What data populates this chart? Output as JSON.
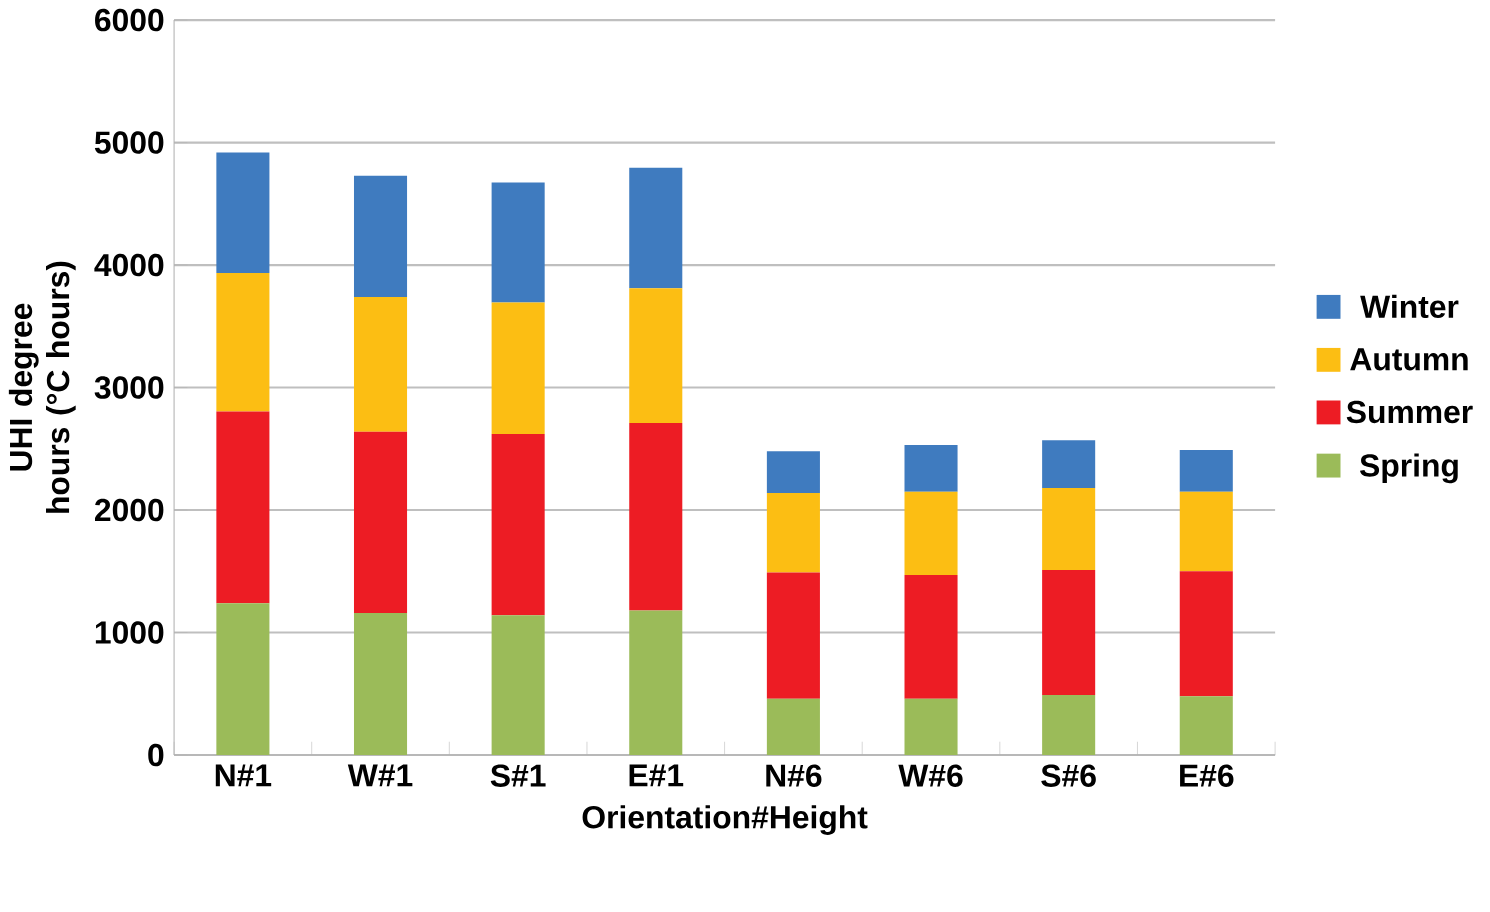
{
  "chart_data": {
    "type": "bar",
    "stacked": true,
    "xlabel": "Orientation#Height",
    "ylabel": "UHI degree hours (°C hours)",
    "categories": [
      "N#1",
      "W#1",
      "S#1",
      "E#1",
      "N#6",
      "W#6",
      "S#6",
      "E#6"
    ],
    "series": [
      {
        "name": "Spring",
        "color": "#9bbb59",
        "values": [
          1240,
          1160,
          1140,
          1180,
          460,
          460,
          490,
          480
        ]
      },
      {
        "name": "Summer",
        "color": "#ed1c24",
        "values": [
          1565,
          1480,
          1480,
          1530,
          1030,
          1010,
          1020,
          1020
        ]
      },
      {
        "name": "Autumn",
        "color": "#fcbe13",
        "values": [
          1130,
          1100,
          1075,
          1100,
          650,
          680,
          670,
          650
        ]
      },
      {
        "name": "Winter",
        "color": "#3f7bbf",
        "values": [
          985,
          990,
          980,
          985,
          340,
          380,
          390,
          340
        ]
      }
    ],
    "ylim": [
      0,
      6000
    ],
    "yticks": [
      0,
      1000,
      2000,
      3000,
      4000,
      5000,
      6000
    ],
    "grid": "y",
    "legend": "right"
  }
}
